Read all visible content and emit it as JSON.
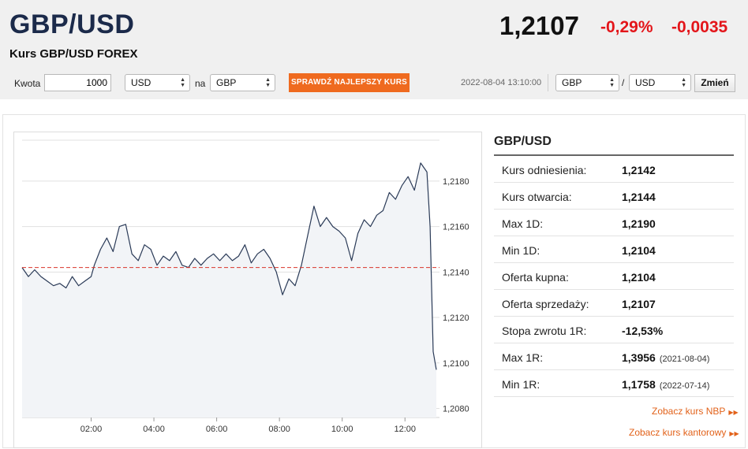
{
  "header": {
    "pair": "GBP/USD",
    "subtitle": "Kurs GBP/USD FOREX",
    "price": "1,2107",
    "change_pct": "-0,29%",
    "change_abs": "-0,0035"
  },
  "converter": {
    "amount_label": "Kwota",
    "amount_value": "1000",
    "from_currency": "USD",
    "to_label": "na",
    "to_currency": "GBP",
    "best_rate_button": "SPRAWDŹ NAJLEPSZY KURS",
    "timestamp": "2022-08-04 13:10:00",
    "pair_base": "GBP",
    "pair_sep": "/",
    "pair_quote": "USD",
    "change_button": "Zmień"
  },
  "stats": {
    "title": "GBP/USD",
    "rows": [
      {
        "label": "Kurs odniesienia:",
        "value": "1,2142",
        "date": ""
      },
      {
        "label": "Kurs otwarcia:",
        "value": "1,2144",
        "date": ""
      },
      {
        "label": "Max 1D:",
        "value": "1,2190",
        "date": ""
      },
      {
        "label": "Min 1D:",
        "value": "1,2104",
        "date": ""
      },
      {
        "label": "Oferta kupna:",
        "value": "1,2104",
        "date": ""
      },
      {
        "label": "Oferta sprzedaży:",
        "value": "1,2107",
        "date": ""
      },
      {
        "label": "Stopa zwrotu 1R:",
        "value": "-12,53%",
        "date": ""
      },
      {
        "label": "Max 1R:",
        "value": "1,3956",
        "date": "(2021-08-04)"
      },
      {
        "label": "Min 1R:",
        "value": "1,1758",
        "date": "(2022-07-14)"
      }
    ],
    "link_nbp": "Zobacz kurs NBP",
    "link_kantor": "Zobacz kurs kantorowy"
  },
  "colors": {
    "accent_orange": "#ef6a1f",
    "negative_red": "#e3151a",
    "line": "#2a3a57",
    "reference_line": "#d9342b"
  },
  "chart_data": {
    "type": "line",
    "x_tick_labels": [
      "02:00",
      "04:00",
      "06:00",
      "08:00",
      "10:00",
      "12:00"
    ],
    "x_tick_hours": [
      2,
      4,
      6,
      8,
      10,
      12
    ],
    "y_tick_labels": [
      "1,2180",
      "1,2160",
      "1,2140",
      "1,2120",
      "1,2100",
      "1,2080"
    ],
    "y_tick_values": [
      1.218,
      1.216,
      1.214,
      1.212,
      1.21,
      1.208
    ],
    "ylim": [
      1.2076,
      1.2198
    ],
    "xlim": [
      -0.2,
      13.1
    ],
    "reference_value": 1.2142,
    "series": [
      {
        "x": [
          -0.2,
          0.0,
          0.2,
          0.4,
          0.6,
          0.8,
          1.0,
          1.2,
          1.4,
          1.6,
          1.8,
          2.0,
          2.1,
          2.3,
          2.5,
          2.7,
          2.9,
          3.1,
          3.3,
          3.5,
          3.7,
          3.9,
          4.1,
          4.3,
          4.5,
          4.7,
          4.9,
          5.1,
          5.3,
          5.5,
          5.7,
          5.9,
          6.1,
          6.3,
          6.5,
          6.7,
          6.9,
          7.1,
          7.3,
          7.5,
          7.7,
          7.9,
          8.1,
          8.3,
          8.5,
          8.7,
          8.9,
          9.1,
          9.3,
          9.5,
          9.7,
          9.9,
          10.1,
          10.3,
          10.5,
          10.7,
          10.9,
          11.1,
          11.3,
          11.5,
          11.7,
          11.9,
          12.1,
          12.3,
          12.5,
          12.7,
          12.8,
          12.9,
          13.0
        ],
        "y": [
          1.2142,
          1.2138,
          1.2141,
          1.2138,
          1.2136,
          1.2134,
          1.2135,
          1.2133,
          1.2138,
          1.2134,
          1.2136,
          1.2138,
          1.2143,
          1.215,
          1.2155,
          1.2149,
          1.216,
          1.2161,
          1.2148,
          1.2145,
          1.2152,
          1.215,
          1.2143,
          1.2147,
          1.2145,
          1.2149,
          1.2143,
          1.2142,
          1.2146,
          1.2143,
          1.2146,
          1.2148,
          1.2145,
          1.2148,
          1.2145,
          1.2147,
          1.2152,
          1.2144,
          1.2148,
          1.215,
          1.2146,
          1.214,
          1.213,
          1.2137,
          1.2134,
          1.2143,
          1.2156,
          1.2169,
          1.216,
          1.2164,
          1.216,
          1.2158,
          1.2155,
          1.2145,
          1.2157,
          1.2163,
          1.216,
          1.2165,
          1.2167,
          1.2175,
          1.2172,
          1.2178,
          1.2182,
          1.2176,
          1.2188,
          1.2184,
          1.216,
          1.2105,
          1.2097
        ]
      }
    ]
  }
}
